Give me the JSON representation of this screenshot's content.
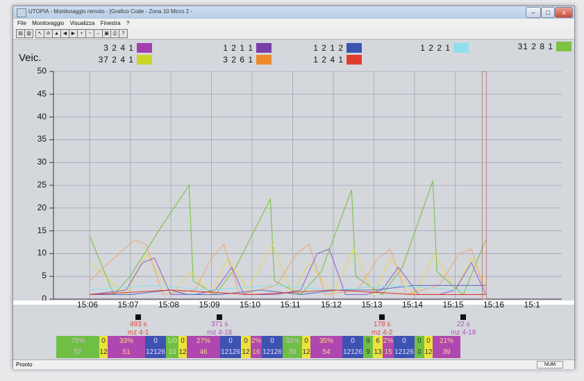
{
  "window": {
    "title": "UTOPIA - Monitoraggio remoto - [Grafico Code - Zona 10 Micro 2 -",
    "min": "–",
    "max": "□",
    "close": "x"
  },
  "menu": [
    "File",
    "Monitoraggio",
    "Visualizza",
    "Finestra",
    "?"
  ],
  "toolbar_icons": [
    "open-icon",
    "save-icon",
    "cursor-icon",
    "stop-icon",
    "up-icon",
    "back-icon",
    "forward-icon",
    "zoom-in-icon",
    "zoom-out-icon",
    "minus-icon",
    "disk-icon",
    "print-icon",
    "help-icon"
  ],
  "legend": [
    {
      "label": "3 2 4 1",
      "color": "#a040b0"
    },
    {
      "label": "37 2 4 1",
      "color": "#c8d62a"
    },
    {
      "label": "1 2 1 1",
      "color": "#7a3fa6"
    },
    {
      "label": "3 2 6 1",
      "color": "#ee8a2a"
    },
    {
      "label": "1 2 1 2",
      "color": "#3b55b0"
    },
    {
      "label": "1 2 4 1",
      "color": "#e03c2e"
    },
    {
      "label": "1 2 2 1",
      "color": "#8fe0ee"
    },
    {
      "label": "31 2 8 1",
      "color": "#7ac240"
    }
  ],
  "ylabel": "Veic.",
  "chart_data": {
    "type": "line",
    "ylabel": "Veic.",
    "ylim": [
      0,
      50
    ],
    "yticks": [
      "50",
      "45",
      "40",
      "35",
      "30",
      "25",
      "20",
      "15",
      "10",
      "5",
      "0"
    ],
    "xticks": [
      "15:06",
      "15:07",
      "15:08",
      "15:09",
      "15:10",
      "15:11",
      "15:12",
      "15:13",
      "15:14",
      "15:15",
      "15:16",
      "15:1"
    ],
    "xlim": [
      0,
      12
    ],
    "current_time_x": 9.75,
    "series": [
      {
        "color": "#7ac240",
        "x": [
          0,
          0.5,
          0.6,
          1.0,
          1.7,
          2.45,
          2.55,
          3.1,
          3.6,
          4.45,
          4.55,
          5.2,
          5.7,
          6.45,
          6.55,
          7.2,
          7.7,
          8.45,
          8.55,
          9.2,
          9.75
        ],
        "y": [
          14,
          3,
          1,
          5,
          15,
          25,
          4,
          1,
          7,
          22,
          4,
          1,
          6,
          24,
          5,
          1,
          7,
          26,
          6,
          1,
          13
        ]
      },
      {
        "color": "#e8d850",
        "x": [
          0,
          0.9,
          1.4,
          2.0,
          2.5,
          3.0,
          3.4,
          3.9,
          4.5,
          5.0,
          5.4,
          6.0,
          6.5,
          7.0,
          7.4,
          8.0,
          8.5,
          9.0,
          9.4,
          9.75
        ],
        "y": [
          8,
          1,
          10,
          1,
          6,
          1,
          9,
          2,
          12,
          1,
          8,
          1,
          11,
          1,
          9,
          1,
          10,
          2,
          9,
          3
        ]
      },
      {
        "color": "#f0a870",
        "x": [
          0,
          0.6,
          1.1,
          1.4,
          1.8,
          2.6,
          3.0,
          3.3,
          3.7,
          4.6,
          5.1,
          5.4,
          5.8,
          6.6,
          7.1,
          7.4,
          7.8,
          8.6,
          9.1,
          9.4,
          9.75
        ],
        "y": [
          4,
          9,
          13,
          12,
          1,
          2,
          9,
          12,
          1,
          3,
          10,
          12,
          1,
          2,
          9,
          11,
          1,
          3,
          10,
          11,
          1
        ]
      },
      {
        "color": "#9466c8",
        "x": [
          0,
          0.9,
          1.3,
          1.6,
          2.0,
          2.6,
          3.1,
          3.5,
          3.8,
          4.6,
          5.2,
          5.6,
          5.9,
          6.3,
          6.8,
          7.2,
          7.6,
          8.1,
          8.6,
          9.0,
          9.4,
          9.75
        ],
        "y": [
          1,
          2,
          8,
          9,
          1,
          1,
          2,
          7,
          1,
          1,
          2,
          10,
          11,
          1,
          1,
          2,
          7,
          1,
          1,
          2,
          8,
          1
        ]
      },
      {
        "color": "#5a72c6",
        "x": [
          0,
          1.0,
          2.0,
          2.4,
          3.2,
          4.2,
          5.2,
          6.1,
          7.0,
          8.0,
          9.0,
          9.75
        ],
        "y": [
          1,
          1,
          2,
          1,
          1,
          2,
          1,
          2,
          2,
          3,
          3,
          3
        ]
      },
      {
        "color": "#8fe0ee",
        "x": [
          0,
          1.5,
          3.0,
          4.5,
          6.0,
          7.5,
          9.0,
          9.75
        ],
        "y": [
          2,
          3,
          2,
          3,
          2,
          3,
          2,
          2
        ]
      },
      {
        "color": "#e03c2e",
        "x": [
          0,
          2.0,
          4.0,
          6.0,
          8.0,
          9.75
        ],
        "y": [
          1,
          2,
          1,
          2,
          1,
          1
        ]
      }
    ]
  },
  "markers": [
    {
      "time": "493 s",
      "zone": "mz 4-1",
      "color": "#e0463a",
      "x": 1.2
    },
    {
      "time": "371 s",
      "zone": "mz 4-18",
      "color": "#b24fb8",
      "x": 3.2
    },
    {
      "time": "178 s",
      "zone": "mz 4-2",
      "color": "#e0463a",
      "x": 7.2
    },
    {
      "time": "22 s",
      "zone": "mz 4-19",
      "color": "#b24fb8",
      "x": 9.2
    }
  ],
  "cells_top": [
    {
      "text": "78%",
      "bg": "#6fbf45",
      "fg": "#d7b8e8",
      "w": 62
    },
    {
      "text": "0",
      "bg": "#ece33a",
      "fg": "#333",
      "w": 12
    },
    {
      "text": "33%",
      "bg": "#b046b0",
      "fg": "#f2e07a",
      "w": 54
    },
    {
      "text": "0",
      "bg": "#3e52b2",
      "fg": "#e0e0ff",
      "w": 30
    },
    {
      "text": "1/0",
      "bg": "#6fbf45",
      "fg": "#c9e8a9",
      "w": 18
    },
    {
      "text": "0",
      "bg": "#ece33a",
      "fg": "#333",
      "w": 12
    },
    {
      "text": "27%",
      "bg": "#b046b0",
      "fg": "#f2e07a",
      "w": 48
    },
    {
      "text": "0",
      "bg": "#3e52b2",
      "fg": "#e0e0ff",
      "w": 30
    },
    {
      "text": "0",
      "bg": "#ece33a",
      "fg": "#333",
      "w": 14
    },
    {
      "text": "2%",
      "bg": "#b046b0",
      "fg": "#f2e07a",
      "w": 16
    },
    {
      "text": "0",
      "bg": "#3e52b2",
      "fg": "#e0e0ff",
      "w": 30
    },
    {
      "text": "32%",
      "bg": "#6fbf45",
      "fg": "#d7b8e8",
      "w": 28
    },
    {
      "text": "0",
      "bg": "#ece33a",
      "fg": "#333",
      "w": 12
    },
    {
      "text": "35%",
      "bg": "#b046b0",
      "fg": "#f2e07a",
      "w": 46
    },
    {
      "text": "0",
      "bg": "#3e52b2",
      "fg": "#e0e0ff",
      "w": 30
    },
    {
      "text": "9",
      "bg": "#6fbf45",
      "fg": "#333",
      "w": 14
    },
    {
      "text": "6",
      "bg": "#ece33a",
      "fg": "#333",
      "w": 14
    },
    {
      "text": "2%",
      "bg": "#b046b0",
      "fg": "#f2e07a",
      "w": 16
    },
    {
      "text": "0",
      "bg": "#3e52b2",
      "fg": "#e0e0ff",
      "w": 30
    },
    {
      "text": "0",
      "bg": "#6fbf45",
      "fg": "#333",
      "w": 14
    },
    {
      "text": "0",
      "bg": "#ece33a",
      "fg": "#333",
      "w": 12
    },
    {
      "text": "21%",
      "bg": "#b046b0",
      "fg": "#f2e07a",
      "w": 40
    }
  ],
  "cells_bottom": [
    {
      "text": "57",
      "bg": "#6fbf45",
      "fg": "#d7b8e8",
      "w": 62
    },
    {
      "text": "12",
      "bg": "#ece33a",
      "fg": "#333",
      "w": 12
    },
    {
      "text": "51",
      "bg": "#b046b0",
      "fg": "#f2e07a",
      "w": 54
    },
    {
      "text": "12126",
      "bg": "#3e52b2",
      "fg": "#e0e0ff",
      "w": 30
    },
    {
      "text": "10",
      "bg": "#6fbf45",
      "fg": "#c9e8a9",
      "w": 18
    },
    {
      "text": "12",
      "bg": "#ece33a",
      "fg": "#333",
      "w": 12
    },
    {
      "text": "46",
      "bg": "#b046b0",
      "fg": "#f2e07a",
      "w": 48
    },
    {
      "text": "12126",
      "bg": "#3e52b2",
      "fg": "#e0e0ff",
      "w": 30
    },
    {
      "text": "12",
      "bg": "#ece33a",
      "fg": "#333",
      "w": 14
    },
    {
      "text": "16",
      "bg": "#b046b0",
      "fg": "#f2e07a",
      "w": 16
    },
    {
      "text": "12126",
      "bg": "#3e52b2",
      "fg": "#e0e0ff",
      "w": 30
    },
    {
      "text": "39",
      "bg": "#6fbf45",
      "fg": "#d7b8e8",
      "w": 28
    },
    {
      "text": "12",
      "bg": "#ece33a",
      "fg": "#333",
      "w": 12
    },
    {
      "text": "54",
      "bg": "#b046b0",
      "fg": "#f2e07a",
      "w": 46
    },
    {
      "text": "12126",
      "bg": "#3e52b2",
      "fg": "#e0e0ff",
      "w": 30
    },
    {
      "text": "9",
      "bg": "#6fbf45",
      "fg": "#333",
      "w": 14
    },
    {
      "text": "13",
      "bg": "#ece33a",
      "fg": "#333",
      "w": 14
    },
    {
      "text": "15",
      "bg": "#b046b0",
      "fg": "#f2e07a",
      "w": 16
    },
    {
      "text": "12126",
      "bg": "#3e52b2",
      "fg": "#e0e0ff",
      "w": 30
    },
    {
      "text": "0",
      "bg": "#6fbf45",
      "fg": "#333",
      "w": 14
    },
    {
      "text": "12",
      "bg": "#ece33a",
      "fg": "#333",
      "w": 12
    },
    {
      "text": "39",
      "bg": "#b046b0",
      "fg": "#f2e07a",
      "w": 40
    }
  ],
  "status": {
    "left": "Pronto",
    "right": "NUM"
  }
}
